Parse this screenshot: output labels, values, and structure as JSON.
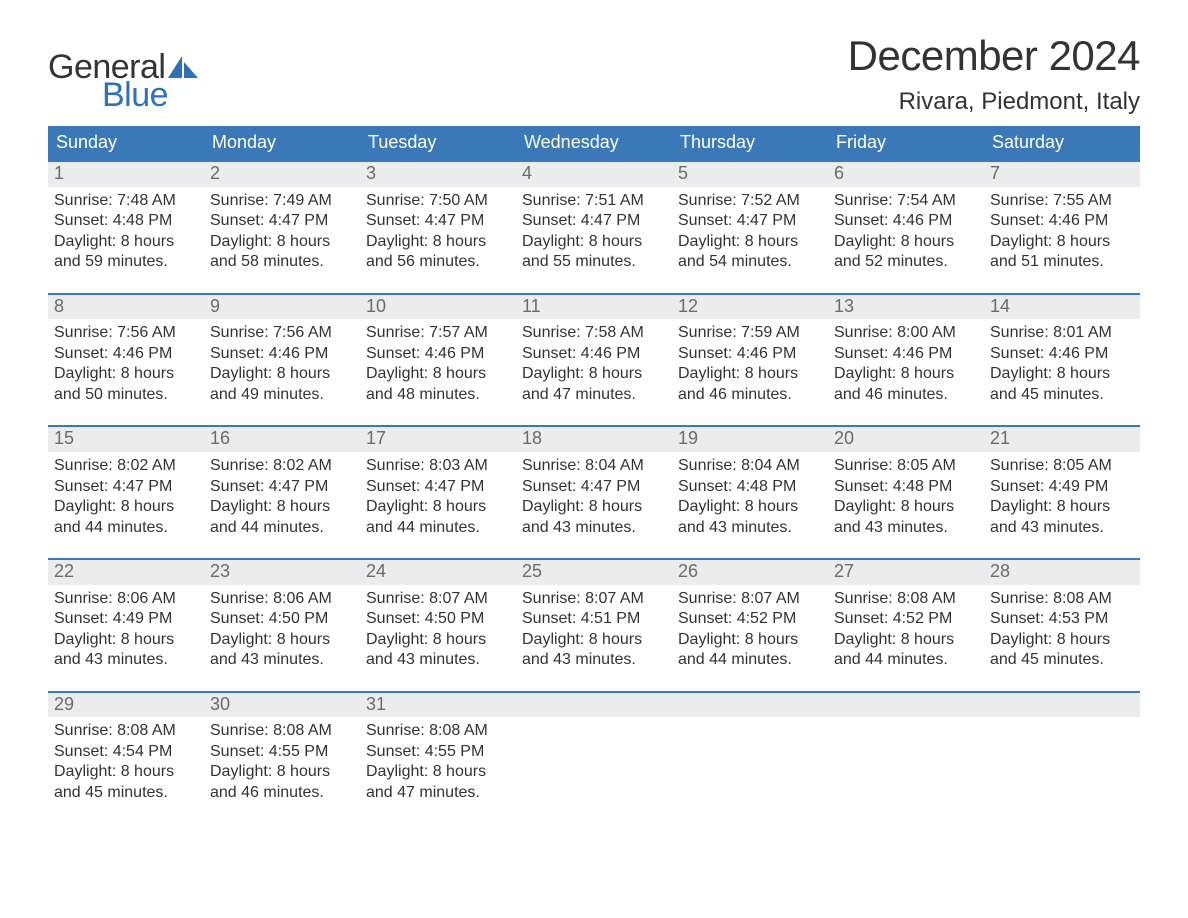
{
  "logo": {
    "word1": "General",
    "word2": "Blue"
  },
  "title": "December 2024",
  "location": "Rivara, Piedmont, Italy",
  "colors": {
    "header_bg": "#3a78b8",
    "header_text": "#ffffff",
    "daynum_bg": "#ececec",
    "daynum_text": "#6a6a6a",
    "body_text": "#333333",
    "accent": "#2e72b5",
    "page_bg": "#ffffff"
  },
  "days_of_week": [
    "Sunday",
    "Monday",
    "Tuesday",
    "Wednesday",
    "Thursday",
    "Friday",
    "Saturday"
  ],
  "weeks": [
    [
      {
        "n": "1",
        "sunrise": "Sunrise: 7:48 AM",
        "sunset": "Sunset: 4:48 PM",
        "d1": "Daylight: 8 hours",
        "d2": "and 59 minutes."
      },
      {
        "n": "2",
        "sunrise": "Sunrise: 7:49 AM",
        "sunset": "Sunset: 4:47 PM",
        "d1": "Daylight: 8 hours",
        "d2": "and 58 minutes."
      },
      {
        "n": "3",
        "sunrise": "Sunrise: 7:50 AM",
        "sunset": "Sunset: 4:47 PM",
        "d1": "Daylight: 8 hours",
        "d2": "and 56 minutes."
      },
      {
        "n": "4",
        "sunrise": "Sunrise: 7:51 AM",
        "sunset": "Sunset: 4:47 PM",
        "d1": "Daylight: 8 hours",
        "d2": "and 55 minutes."
      },
      {
        "n": "5",
        "sunrise": "Sunrise: 7:52 AM",
        "sunset": "Sunset: 4:47 PM",
        "d1": "Daylight: 8 hours",
        "d2": "and 54 minutes."
      },
      {
        "n": "6",
        "sunrise": "Sunrise: 7:54 AM",
        "sunset": "Sunset: 4:46 PM",
        "d1": "Daylight: 8 hours",
        "d2": "and 52 minutes."
      },
      {
        "n": "7",
        "sunrise": "Sunrise: 7:55 AM",
        "sunset": "Sunset: 4:46 PM",
        "d1": "Daylight: 8 hours",
        "d2": "and 51 minutes."
      }
    ],
    [
      {
        "n": "8",
        "sunrise": "Sunrise: 7:56 AM",
        "sunset": "Sunset: 4:46 PM",
        "d1": "Daylight: 8 hours",
        "d2": "and 50 minutes."
      },
      {
        "n": "9",
        "sunrise": "Sunrise: 7:56 AM",
        "sunset": "Sunset: 4:46 PM",
        "d1": "Daylight: 8 hours",
        "d2": "and 49 minutes."
      },
      {
        "n": "10",
        "sunrise": "Sunrise: 7:57 AM",
        "sunset": "Sunset: 4:46 PM",
        "d1": "Daylight: 8 hours",
        "d2": "and 48 minutes."
      },
      {
        "n": "11",
        "sunrise": "Sunrise: 7:58 AM",
        "sunset": "Sunset: 4:46 PM",
        "d1": "Daylight: 8 hours",
        "d2": "and 47 minutes."
      },
      {
        "n": "12",
        "sunrise": "Sunrise: 7:59 AM",
        "sunset": "Sunset: 4:46 PM",
        "d1": "Daylight: 8 hours",
        "d2": "and 46 minutes."
      },
      {
        "n": "13",
        "sunrise": "Sunrise: 8:00 AM",
        "sunset": "Sunset: 4:46 PM",
        "d1": "Daylight: 8 hours",
        "d2": "and 46 minutes."
      },
      {
        "n": "14",
        "sunrise": "Sunrise: 8:01 AM",
        "sunset": "Sunset: 4:46 PM",
        "d1": "Daylight: 8 hours",
        "d2": "and 45 minutes."
      }
    ],
    [
      {
        "n": "15",
        "sunrise": "Sunrise: 8:02 AM",
        "sunset": "Sunset: 4:47 PM",
        "d1": "Daylight: 8 hours",
        "d2": "and 44 minutes."
      },
      {
        "n": "16",
        "sunrise": "Sunrise: 8:02 AM",
        "sunset": "Sunset: 4:47 PM",
        "d1": "Daylight: 8 hours",
        "d2": "and 44 minutes."
      },
      {
        "n": "17",
        "sunrise": "Sunrise: 8:03 AM",
        "sunset": "Sunset: 4:47 PM",
        "d1": "Daylight: 8 hours",
        "d2": "and 44 minutes."
      },
      {
        "n": "18",
        "sunrise": "Sunrise: 8:04 AM",
        "sunset": "Sunset: 4:47 PM",
        "d1": "Daylight: 8 hours",
        "d2": "and 43 minutes."
      },
      {
        "n": "19",
        "sunrise": "Sunrise: 8:04 AM",
        "sunset": "Sunset: 4:48 PM",
        "d1": "Daylight: 8 hours",
        "d2": "and 43 minutes."
      },
      {
        "n": "20",
        "sunrise": "Sunrise: 8:05 AM",
        "sunset": "Sunset: 4:48 PM",
        "d1": "Daylight: 8 hours",
        "d2": "and 43 minutes."
      },
      {
        "n": "21",
        "sunrise": "Sunrise: 8:05 AM",
        "sunset": "Sunset: 4:49 PM",
        "d1": "Daylight: 8 hours",
        "d2": "and 43 minutes."
      }
    ],
    [
      {
        "n": "22",
        "sunrise": "Sunrise: 8:06 AM",
        "sunset": "Sunset: 4:49 PM",
        "d1": "Daylight: 8 hours",
        "d2": "and 43 minutes."
      },
      {
        "n": "23",
        "sunrise": "Sunrise: 8:06 AM",
        "sunset": "Sunset: 4:50 PM",
        "d1": "Daylight: 8 hours",
        "d2": "and 43 minutes."
      },
      {
        "n": "24",
        "sunrise": "Sunrise: 8:07 AM",
        "sunset": "Sunset: 4:50 PM",
        "d1": "Daylight: 8 hours",
        "d2": "and 43 minutes."
      },
      {
        "n": "25",
        "sunrise": "Sunrise: 8:07 AM",
        "sunset": "Sunset: 4:51 PM",
        "d1": "Daylight: 8 hours",
        "d2": "and 43 minutes."
      },
      {
        "n": "26",
        "sunrise": "Sunrise: 8:07 AM",
        "sunset": "Sunset: 4:52 PM",
        "d1": "Daylight: 8 hours",
        "d2": "and 44 minutes."
      },
      {
        "n": "27",
        "sunrise": "Sunrise: 8:08 AM",
        "sunset": "Sunset: 4:52 PM",
        "d1": "Daylight: 8 hours",
        "d2": "and 44 minutes."
      },
      {
        "n": "28",
        "sunrise": "Sunrise: 8:08 AM",
        "sunset": "Sunset: 4:53 PM",
        "d1": "Daylight: 8 hours",
        "d2": "and 45 minutes."
      }
    ],
    [
      {
        "n": "29",
        "sunrise": "Sunrise: 8:08 AM",
        "sunset": "Sunset: 4:54 PM",
        "d1": "Daylight: 8 hours",
        "d2": "and 45 minutes."
      },
      {
        "n": "30",
        "sunrise": "Sunrise: 8:08 AM",
        "sunset": "Sunset: 4:55 PM",
        "d1": "Daylight: 8 hours",
        "d2": "and 46 minutes."
      },
      {
        "n": "31",
        "sunrise": "Sunrise: 8:08 AM",
        "sunset": "Sunset: 4:55 PM",
        "d1": "Daylight: 8 hours",
        "d2": "and 47 minutes."
      },
      null,
      null,
      null,
      null
    ]
  ]
}
